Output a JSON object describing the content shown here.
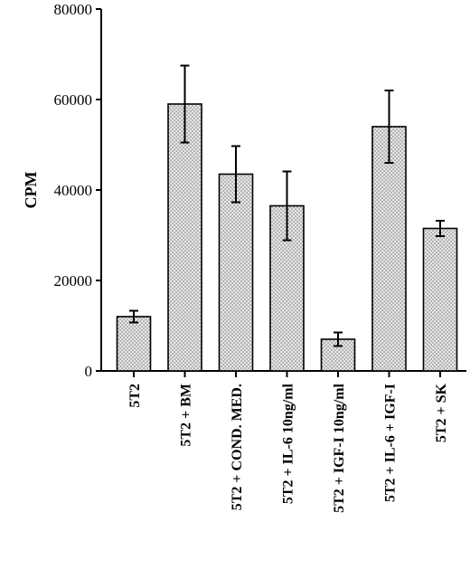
{
  "chart_data": {
    "type": "bar",
    "title": "",
    "xlabel": "",
    "ylabel": "CPM",
    "ylim": [
      0,
      80000
    ],
    "yticks": [
      0,
      20000,
      40000,
      60000,
      80000
    ],
    "ytick_labels": [
      "0",
      "20000",
      "40000",
      "60000",
      "80000"
    ],
    "grid": false,
    "legend": "none",
    "categories": [
      "5T2",
      "5T2 + BM",
      "5T2 + COND. MED.",
      "5T2 + IL-6 10ng/ml",
      "5T2 + IGF-I 10ng/ml",
      "5T2 + IL-6 + IGF-I",
      "5T2 + SK"
    ],
    "values": [
      12000,
      59000,
      43500,
      36500,
      7000,
      54000,
      31500
    ],
    "errors": [
      1300,
      8500,
      6200,
      7600,
      1500,
      8000,
      1700
    ],
    "bar_fill": "#d8d8d8",
    "bar_stroke": "#000000"
  }
}
